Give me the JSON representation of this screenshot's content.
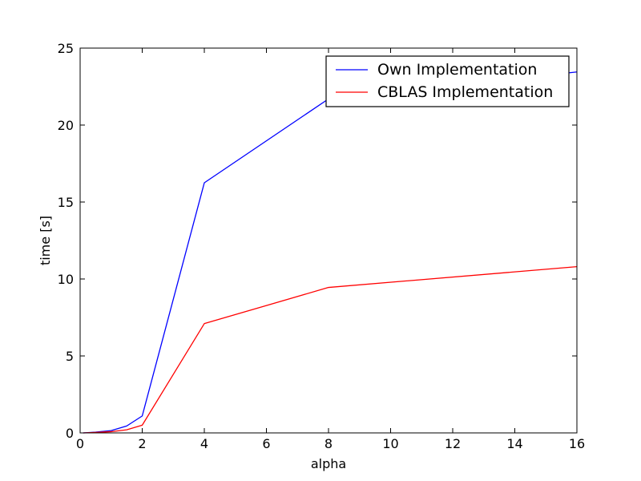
{
  "chart_data": {
    "type": "line",
    "title": "",
    "xlabel": "alpha",
    "ylabel": "time [s]",
    "xlim": [
      0,
      16
    ],
    "ylim": [
      0,
      25
    ],
    "xticks": [
      0,
      2,
      4,
      6,
      8,
      10,
      12,
      14,
      16
    ],
    "yticks": [
      0,
      5,
      10,
      15,
      20,
      25
    ],
    "grid": false,
    "legend_position": "top-right",
    "series": [
      {
        "name": "Own Implementation",
        "color": "#0000ff",
        "x": [
          0.1,
          0.5,
          1,
          1.5,
          2,
          4,
          8,
          16
        ],
        "y": [
          0.0,
          0.05,
          0.15,
          0.45,
          1.1,
          16.25,
          21.7,
          23.45
        ]
      },
      {
        "name": "CBLAS Implementation",
        "color": "#ff0000",
        "x": [
          0.1,
          0.5,
          1,
          1.5,
          2,
          4,
          8,
          16
        ],
        "y": [
          0.0,
          0.03,
          0.08,
          0.2,
          0.5,
          7.1,
          9.45,
          10.8
        ]
      }
    ]
  }
}
